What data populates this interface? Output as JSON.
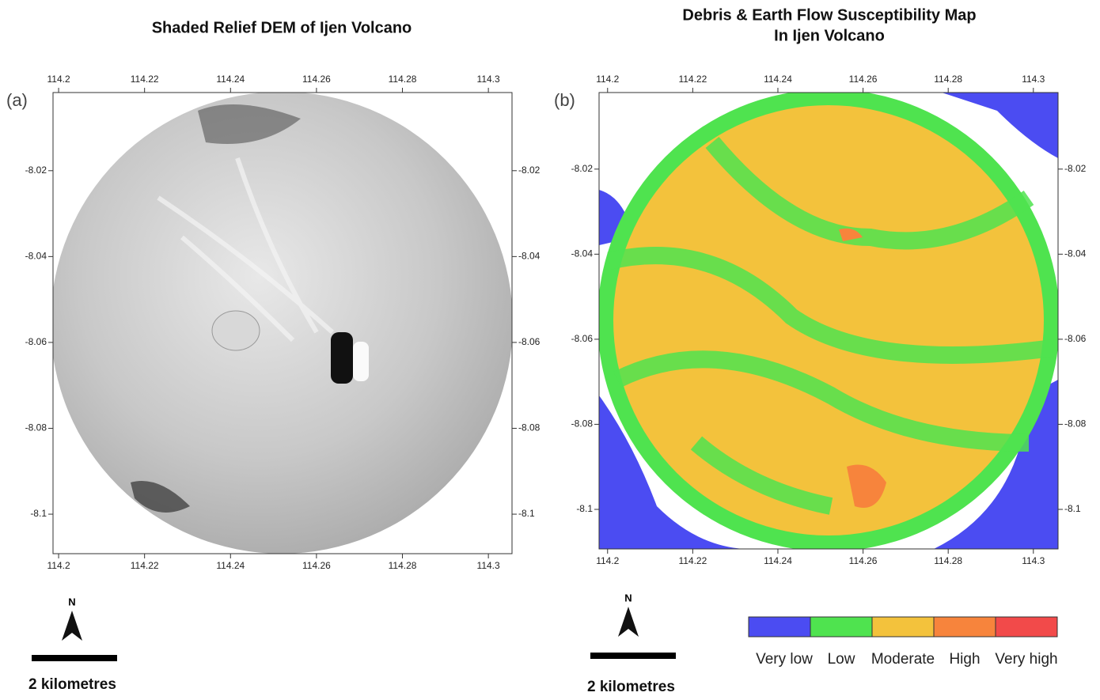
{
  "panels": [
    {
      "label": "(a)",
      "title": [
        "Shaded Relief DEM of Ijen Volcano"
      ],
      "xlim": [
        114.1987,
        114.3055
      ],
      "ylim": [
        -8.1092,
        -8.0018
      ],
      "xticks": [
        114.2,
        114.22,
        114.24,
        114.26,
        114.28,
        114.3
      ],
      "yticks": [
        -8.02,
        -8.04,
        -8.06,
        -8.08,
        -8.1
      ],
      "north": "N",
      "scale": "2 kilometres"
    },
    {
      "label": "(b)",
      "title": [
        "Debris & Earth Flow Susceptibility Map",
        "In Ijen Volcano"
      ],
      "xlim": [
        114.198,
        114.3058
      ],
      "ylim": [
        -8.1093,
        -8.002
      ],
      "xticks": [
        114.2,
        114.22,
        114.24,
        114.26,
        114.28,
        114.3
      ],
      "yticks": [
        -8.02,
        -8.04,
        -8.06,
        -8.08,
        -8.1
      ],
      "north": "N",
      "scale": "2 kilometres",
      "legend": [
        {
          "name": "Very low",
          "color": "#4b4cf2"
        },
        {
          "name": "Low",
          "color": "#4fe34f"
        },
        {
          "name": "Moderate",
          "color": "#f3c23c"
        },
        {
          "name": "High",
          "color": "#f7843c"
        },
        {
          "name": "Very high",
          "color": "#f24a4a"
        }
      ]
    }
  ]
}
